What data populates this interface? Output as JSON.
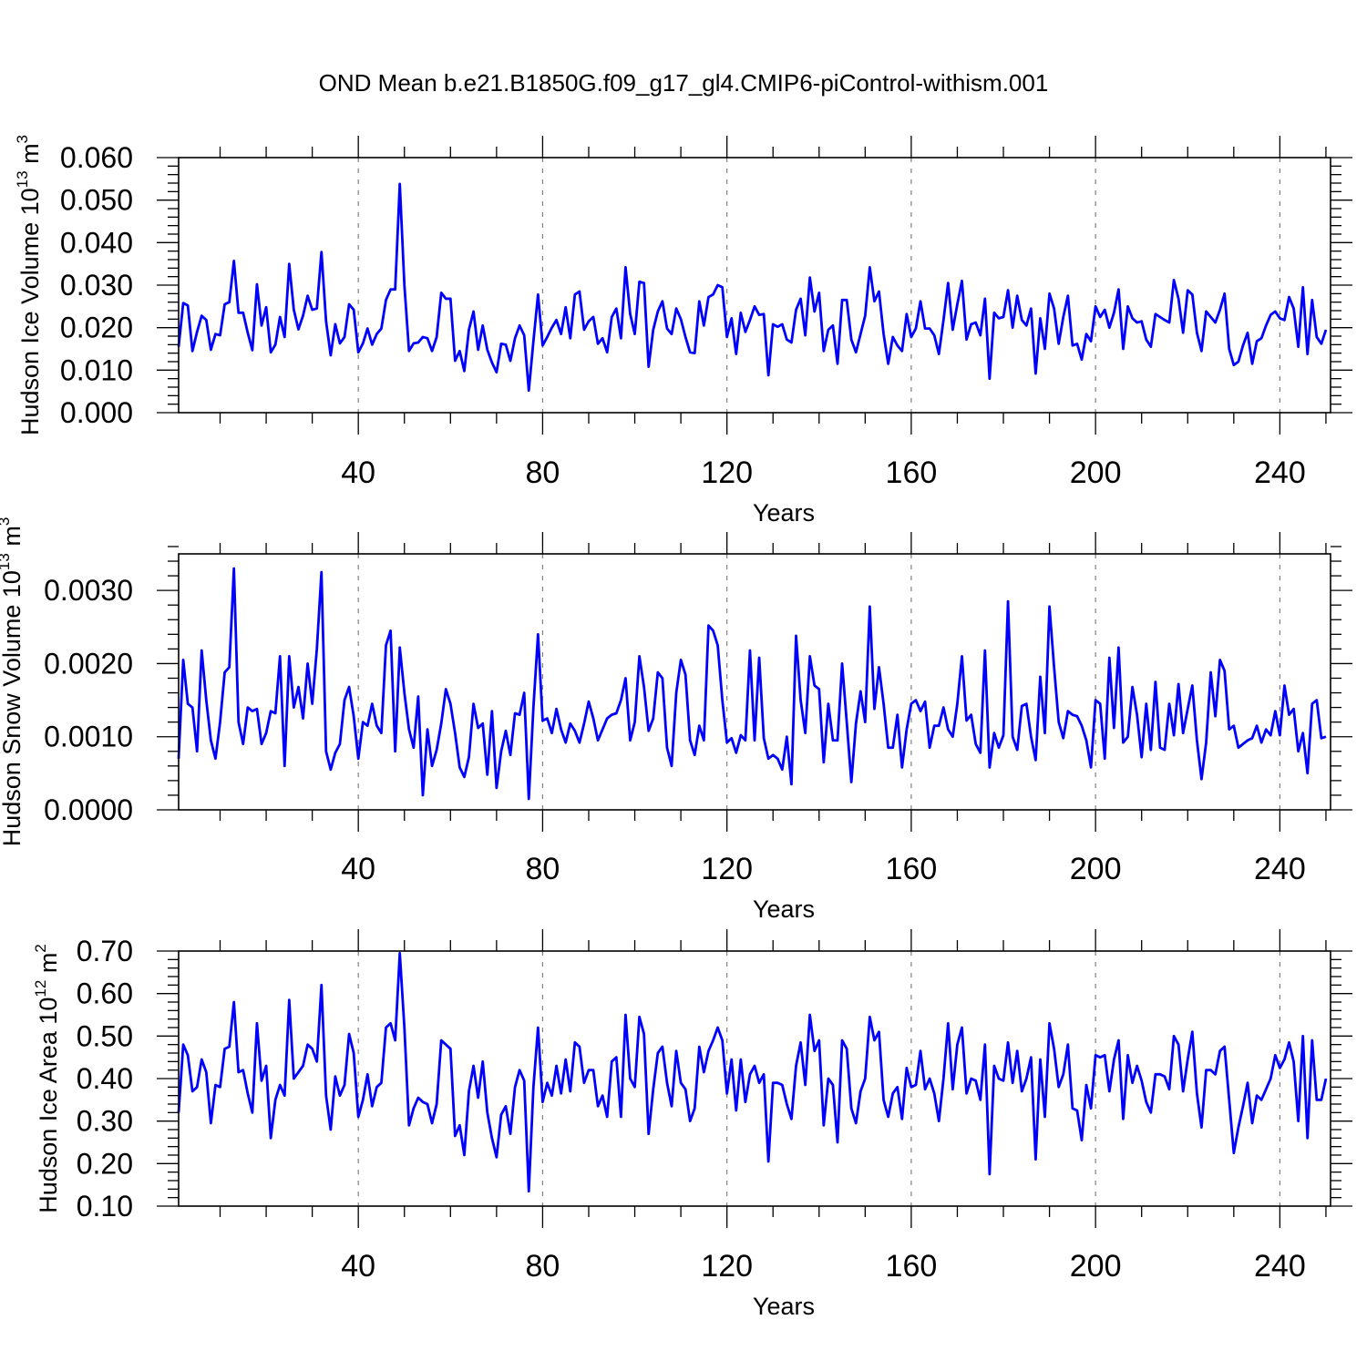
{
  "title": "OND Mean b.e21.B1850G.f09_g17_gl4.CMIP6-piControl-withism.001",
  "colors": {
    "line": "#0000ff",
    "axis": "#000000",
    "grid": "#808080"
  },
  "chart_data": [
    {
      "type": "line",
      "ylabel": {
        "main": "Hudson Ice Volume 10",
        "exponent": "13",
        "unit": " m",
        "unit_exp": "3"
      },
      "xlabel": "Years",
      "xlim": [
        1,
        251
      ],
      "ylim": [
        0.0,
        0.06
      ],
      "xticks": [
        40,
        80,
        120,
        160,
        200,
        240
      ],
      "yticks": [
        0.0,
        0.01,
        0.02,
        0.03,
        0.04,
        0.05,
        0.06
      ],
      "ytick_labels": [
        "0.000",
        "0.010",
        "0.020",
        "0.030",
        "0.040",
        "0.050",
        "0.060"
      ],
      "grid": "vertical dashed at x ticks",
      "series": [
        {
          "name": "Hudson Ice Volume",
          "x_start": 1,
          "values": [
            0.0155,
            0.0258,
            0.0252,
            0.0145,
            0.019,
            0.0228,
            0.0218,
            0.0148,
            0.0185,
            0.0182,
            0.0255,
            0.026,
            0.0357,
            0.0235,
            0.0235,
            0.0188,
            0.0147,
            0.0302,
            0.0205,
            0.0248,
            0.0142,
            0.016,
            0.0225,
            0.0178,
            0.035,
            0.0242,
            0.0196,
            0.0228,
            0.0275,
            0.0242,
            0.0245,
            0.0378,
            0.0215,
            0.0135,
            0.0208,
            0.0163,
            0.0178,
            0.0255,
            0.0242,
            0.0142,
            0.0163,
            0.0198,
            0.016,
            0.0185,
            0.0198,
            0.0265,
            0.029,
            0.029,
            0.0538,
            0.03,
            0.0145,
            0.0163,
            0.0165,
            0.0178,
            0.0175,
            0.0145,
            0.0178,
            0.0282,
            0.0268,
            0.0268,
            0.0122,
            0.0145,
            0.0098,
            0.0195,
            0.0238,
            0.0148,
            0.0205,
            0.0148,
            0.0118,
            0.0095,
            0.0162,
            0.016,
            0.0122,
            0.0175,
            0.0205,
            0.0182,
            0.0052,
            0.0168,
            0.0278,
            0.0158,
            0.0178,
            0.02,
            0.0218,
            0.0185,
            0.0248,
            0.0175,
            0.0278,
            0.0285,
            0.0195,
            0.0215,
            0.0225,
            0.0162,
            0.0175,
            0.0142,
            0.0225,
            0.0245,
            0.0175,
            0.0342,
            0.0232,
            0.0185,
            0.0308,
            0.0305,
            0.0108,
            0.0195,
            0.0238,
            0.0262,
            0.0198,
            0.0185,
            0.0245,
            0.022,
            0.0178,
            0.0142,
            0.014,
            0.0262,
            0.0205,
            0.0272,
            0.0278,
            0.03,
            0.0295,
            0.0178,
            0.0222,
            0.0138,
            0.0235,
            0.019,
            0.0218,
            0.025,
            0.023,
            0.0232,
            0.0088,
            0.0208,
            0.0202,
            0.0208,
            0.0172,
            0.0165,
            0.0242,
            0.0268,
            0.0182,
            0.0318,
            0.0238,
            0.0282,
            0.0145,
            0.0195,
            0.0205,
            0.0115,
            0.0265,
            0.0265,
            0.0172,
            0.0142,
            0.0185,
            0.0228,
            0.0342,
            0.0262,
            0.0285,
            0.0185,
            0.0115,
            0.0178,
            0.0158,
            0.0145,
            0.0232,
            0.0178,
            0.0198,
            0.0262,
            0.0198,
            0.0198,
            0.0182,
            0.0138,
            0.0218,
            0.0305,
            0.0195,
            0.0255,
            0.031,
            0.0172,
            0.0208,
            0.0212,
            0.0182,
            0.0268,
            0.008,
            0.0235,
            0.0222,
            0.0225,
            0.0288,
            0.02,
            0.0275,
            0.0218,
            0.0205,
            0.0245,
            0.0092,
            0.0222,
            0.015,
            0.028,
            0.0245,
            0.0162,
            0.0225,
            0.0275,
            0.0158,
            0.0162,
            0.0125,
            0.0185,
            0.0168,
            0.025,
            0.0225,
            0.0242,
            0.02,
            0.0235,
            0.029,
            0.015,
            0.025,
            0.0222,
            0.0212,
            0.0215,
            0.0172,
            0.0155,
            0.0232,
            0.0225,
            0.0218,
            0.0212,
            0.0312,
            0.0268,
            0.0188,
            0.0288,
            0.0278,
            0.0188,
            0.0145,
            0.0238,
            0.0225,
            0.0212,
            0.0242,
            0.028,
            0.015,
            0.0112,
            0.012,
            0.0158,
            0.0188,
            0.0115,
            0.0168,
            0.0175,
            0.0205,
            0.023,
            0.0238,
            0.0222,
            0.0218,
            0.0272,
            0.0245,
            0.0155,
            0.0295,
            0.0138,
            0.0265,
            0.0178,
            0.0162,
            0.0195
          ]
        }
      ]
    },
    {
      "type": "line",
      "ylabel": {
        "main": "Hudson Snow Volume 10",
        "exponent": "13",
        "unit": " m",
        "unit_exp": "3"
      },
      "xlabel": "Years",
      "xlim": [
        1,
        251
      ],
      "ylim": [
        0.0,
        0.0035
      ],
      "xticks": [
        40,
        80,
        120,
        160,
        200,
        240
      ],
      "yticks": [
        0.0,
        0.001,
        0.002,
        0.003
      ],
      "ytick_labels": [
        "0.0000",
        "0.0010",
        "0.0020",
        "0.0030"
      ],
      "grid": "vertical dashed at x ticks",
      "series": [
        {
          "name": "Hudson Snow Volume",
          "x_start": 1,
          "values": [
            0.0007,
            0.00205,
            0.00145,
            0.0014,
            0.0008,
            0.00218,
            0.0015,
            0.00095,
            0.0007,
            0.0012,
            0.00188,
            0.00195,
            0.0033,
            0.0012,
            0.0009,
            0.0014,
            0.00135,
            0.00138,
            0.0009,
            0.00105,
            0.00135,
            0.00132,
            0.0021,
            0.0006,
            0.0021,
            0.0014,
            0.00168,
            0.00125,
            0.002,
            0.00145,
            0.0022,
            0.00325,
            0.0008,
            0.00055,
            0.00078,
            0.0009,
            0.0015,
            0.00168,
            0.00128,
            0.0007,
            0.0012,
            0.00115,
            0.00145,
            0.00115,
            0.00105,
            0.00225,
            0.00245,
            0.0008,
            0.00222,
            0.0016,
            0.0011,
            0.00085,
            0.00155,
            0.0002,
            0.0011,
            0.0006,
            0.00082,
            0.00118,
            0.00165,
            0.00145,
            0.00105,
            0.00058,
            0.00045,
            0.00072,
            0.00145,
            0.00112,
            0.00118,
            0.00048,
            0.00135,
            0.0003,
            0.0008,
            0.00108,
            0.00075,
            0.00132,
            0.0013,
            0.0016,
            0.00015,
            0.0014,
            0.0024,
            0.00122,
            0.00125,
            0.00105,
            0.00138,
            0.0011,
            0.00092,
            0.00118,
            0.00108,
            0.00092,
            0.00118,
            0.00148,
            0.00125,
            0.00095,
            0.0011,
            0.00125,
            0.0013,
            0.00132,
            0.0015,
            0.0018,
            0.00095,
            0.0012,
            0.0021,
            0.00168,
            0.00108,
            0.00125,
            0.00188,
            0.0018,
            0.00085,
            0.0006,
            0.0016,
            0.00205,
            0.00185,
            0.00095,
            0.00075,
            0.00115,
            0.00095,
            0.00252,
            0.00245,
            0.00225,
            0.0015,
            0.00092,
            0.00098,
            0.00078,
            0.00102,
            0.00095,
            0.00218,
            0.00095,
            0.00208,
            0.00098,
            0.0007,
            0.00075,
            0.0007,
            0.00055,
            0.001,
            0.00035,
            0.00238,
            0.0015,
            0.00105,
            0.0021,
            0.0017,
            0.00165,
            0.00065,
            0.00145,
            0.00095,
            0.00095,
            0.002,
            0.0012,
            0.00038,
            0.00118,
            0.00162,
            0.0012,
            0.00278,
            0.00138,
            0.00195,
            0.00145,
            0.00085,
            0.00085,
            0.0013,
            0.00058,
            0.0011,
            0.00145,
            0.0015,
            0.00135,
            0.00148,
            0.00085,
            0.00115,
            0.00115,
            0.0014,
            0.0011,
            0.001,
            0.00145,
            0.0021,
            0.00122,
            0.0013,
            0.0009,
            0.00078,
            0.00218,
            0.00058,
            0.00105,
            0.00085,
            0.00102,
            0.00285,
            0.001,
            0.00082,
            0.00142,
            0.00145,
            0.001,
            0.00068,
            0.00182,
            0.00105,
            0.00278,
            0.00195,
            0.0012,
            0.00098,
            0.00135,
            0.0013,
            0.00128,
            0.00115,
            0.00095,
            0.00058,
            0.0015,
            0.00145,
            0.0007,
            0.00208,
            0.00112,
            0.00222,
            0.00092,
            0.001,
            0.00168,
            0.0013,
            0.00072,
            0.00145,
            0.00082,
            0.00175,
            0.00085,
            0.00082,
            0.00145,
            0.00102,
            0.00172,
            0.00105,
            0.00138,
            0.0017,
            0.00095,
            0.00042,
            0.00092,
            0.00188,
            0.00128,
            0.00205,
            0.0019,
            0.0011,
            0.00115,
            0.00085,
            0.0009,
            0.00095,
            0.00098,
            0.00115,
            0.00092,
            0.0011,
            0.00102,
            0.00135,
            0.00102,
            0.0017,
            0.0013,
            0.00138,
            0.0008,
            0.00105,
            0.0005,
            0.00145,
            0.0015,
            0.00098,
            0.001
          ]
        }
      ]
    },
    {
      "type": "line",
      "ylabel": {
        "main": "Hudson Ice Area 10",
        "exponent": "12",
        "unit": " m",
        "unit_exp": "2"
      },
      "xlabel": "Years",
      "xlim": [
        1,
        251
      ],
      "ylim": [
        0.1,
        0.7
      ],
      "xticks": [
        40,
        80,
        120,
        160,
        200,
        240
      ],
      "yticks": [
        0.1,
        0.2,
        0.3,
        0.4,
        0.5,
        0.6,
        0.7
      ],
      "ytick_labels": [
        "0.10",
        "0.20",
        "0.30",
        "0.40",
        "0.50",
        "0.60",
        "0.70"
      ],
      "grid": "vertical dashed at x ticks",
      "series": [
        {
          "name": "Hudson Ice Area",
          "x_start": 1,
          "values": [
            0.32,
            0.48,
            0.455,
            0.37,
            0.38,
            0.445,
            0.415,
            0.295,
            0.385,
            0.38,
            0.47,
            0.475,
            0.58,
            0.415,
            0.42,
            0.365,
            0.32,
            0.53,
            0.395,
            0.43,
            0.26,
            0.35,
            0.385,
            0.36,
            0.585,
            0.4,
            0.415,
            0.43,
            0.48,
            0.47,
            0.44,
            0.62,
            0.36,
            0.28,
            0.405,
            0.36,
            0.385,
            0.505,
            0.46,
            0.31,
            0.35,
            0.41,
            0.335,
            0.38,
            0.39,
            0.52,
            0.53,
            0.49,
            0.695,
            0.52,
            0.29,
            0.33,
            0.355,
            0.345,
            0.34,
            0.295,
            0.34,
            0.49,
            0.48,
            0.47,
            0.265,
            0.29,
            0.22,
            0.37,
            0.43,
            0.355,
            0.44,
            0.32,
            0.26,
            0.215,
            0.315,
            0.335,
            0.27,
            0.38,
            0.42,
            0.395,
            0.135,
            0.38,
            0.52,
            0.345,
            0.39,
            0.36,
            0.43,
            0.365,
            0.445,
            0.37,
            0.485,
            0.475,
            0.39,
            0.42,
            0.42,
            0.335,
            0.36,
            0.31,
            0.44,
            0.45,
            0.31,
            0.55,
            0.4,
            0.38,
            0.545,
            0.505,
            0.27,
            0.375,
            0.46,
            0.475,
            0.39,
            0.335,
            0.465,
            0.39,
            0.375,
            0.3,
            0.33,
            0.475,
            0.415,
            0.465,
            0.49,
            0.52,
            0.49,
            0.365,
            0.445,
            0.325,
            0.445,
            0.345,
            0.41,
            0.43,
            0.39,
            0.41,
            0.205,
            0.39,
            0.39,
            0.385,
            0.34,
            0.305,
            0.43,
            0.485,
            0.385,
            0.55,
            0.465,
            0.49,
            0.29,
            0.4,
            0.385,
            0.25,
            0.49,
            0.47,
            0.33,
            0.295,
            0.37,
            0.4,
            0.545,
            0.49,
            0.51,
            0.35,
            0.31,
            0.365,
            0.38,
            0.305,
            0.425,
            0.38,
            0.385,
            0.465,
            0.375,
            0.4,
            0.365,
            0.3,
            0.4,
            0.53,
            0.375,
            0.48,
            0.52,
            0.365,
            0.4,
            0.395,
            0.35,
            0.48,
            0.175,
            0.43,
            0.4,
            0.395,
            0.485,
            0.39,
            0.465,
            0.37,
            0.4,
            0.45,
            0.21,
            0.445,
            0.31,
            0.53,
            0.47,
            0.38,
            0.41,
            0.48,
            0.33,
            0.325,
            0.255,
            0.385,
            0.33,
            0.455,
            0.45,
            0.455,
            0.37,
            0.445,
            0.49,
            0.305,
            0.455,
            0.39,
            0.43,
            0.395,
            0.345,
            0.32,
            0.41,
            0.41,
            0.405,
            0.375,
            0.5,
            0.48,
            0.37,
            0.445,
            0.51,
            0.365,
            0.285,
            0.42,
            0.42,
            0.41,
            0.465,
            0.475,
            0.35,
            0.225,
            0.285,
            0.335,
            0.39,
            0.295,
            0.36,
            0.35,
            0.375,
            0.4,
            0.455,
            0.425,
            0.445,
            0.485,
            0.44,
            0.3,
            0.5,
            0.26,
            0.49,
            0.35,
            0.35,
            0.4
          ]
        }
      ]
    }
  ]
}
